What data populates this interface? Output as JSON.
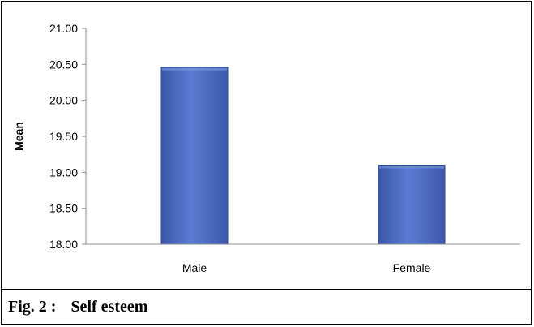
{
  "chart_data": {
    "type": "bar",
    "categories": [
      "Male",
      "Female"
    ],
    "values": [
      20.46,
      19.1
    ],
    "ylabel": "Mean",
    "xlabel": "",
    "ylim": [
      18.0,
      21.0
    ],
    "yticks": [
      "18.00",
      "18.50",
      "19.00",
      "19.50",
      "20.00",
      "20.50",
      "21.00"
    ],
    "grid": false,
    "bar_color": "#4f6fc6"
  },
  "caption": {
    "label": "Fig. 2 :",
    "text": "Self esteem"
  }
}
